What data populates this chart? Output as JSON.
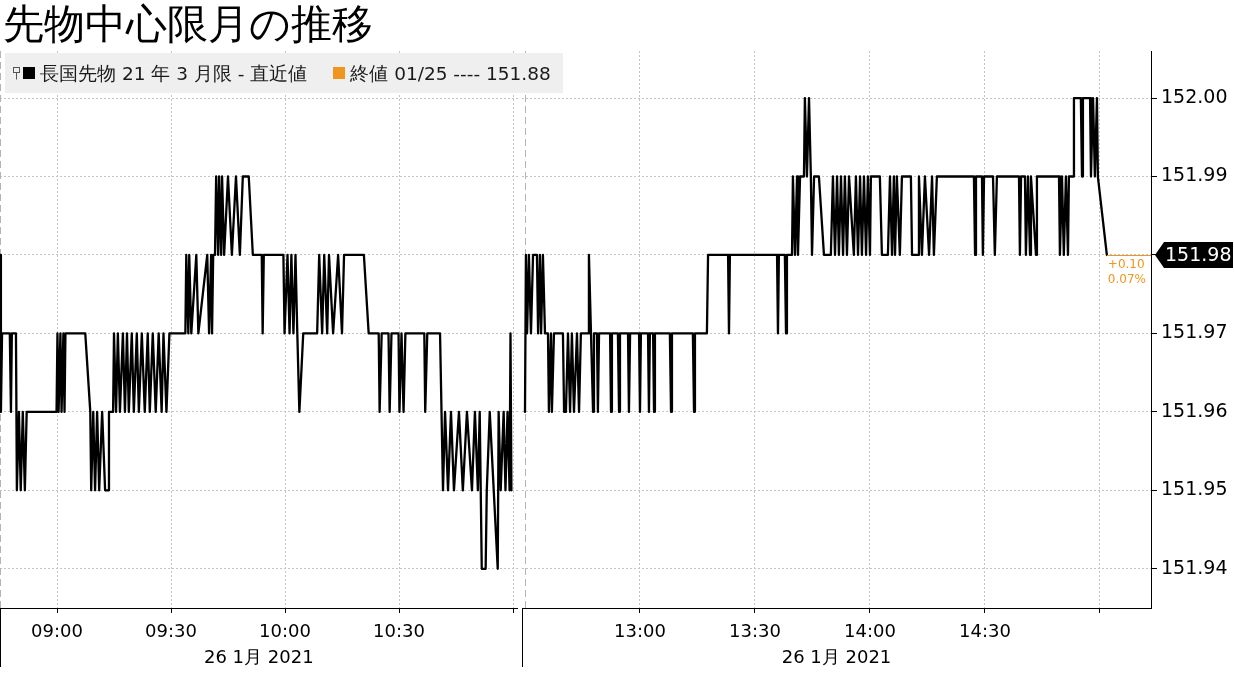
{
  "chart_data": [
    {
      "type": "line",
      "title": "先物中心限月の推移",
      "xlabel": "26 1月 2021",
      "x": [
        8.75,
        8.754,
        8.759,
        8.793,
        8.798,
        8.802,
        8.82,
        8.824,
        8.833,
        8.841,
        8.85,
        8.859,
        8.867,
        8.998,
        9.002,
        9.007,
        9.015,
        9.02,
        9.028,
        9.033,
        9.037,
        9.124,
        9.146,
        9.15,
        9.159,
        9.167,
        9.176,
        9.185,
        9.198,
        9.211,
        9.224,
        9.228,
        9.246,
        9.25,
        9.259,
        9.267,
        9.276,
        9.289,
        9.298,
        9.307,
        9.315,
        9.328,
        9.337,
        9.35,
        9.359,
        9.372,
        9.385,
        9.398,
        9.407,
        9.42,
        9.433,
        9.446,
        9.459,
        9.467,
        9.48,
        9.493,
        9.563,
        9.567,
        9.576,
        9.58,
        9.589,
        9.611,
        9.62,
        9.659,
        9.667,
        9.676,
        9.68,
        9.685,
        9.693,
        9.698,
        9.707,
        9.711,
        9.72,
        9.724,
        9.733,
        9.75,
        9.767,
        9.785,
        9.802,
        9.815,
        9.841,
        9.859,
        9.898,
        9.902,
        9.907,
        9.993,
        9.998,
        10.011,
        10.02,
        10.028,
        10.037,
        10.046,
        10.054,
        10.063,
        10.08,
        10.141,
        10.15,
        10.163,
        10.172,
        10.185,
        10.193,
        10.211,
        10.233,
        10.25,
        10.259,
        10.346,
        10.367,
        10.411,
        10.415,
        10.424,
        10.454,
        10.459,
        10.467,
        10.498,
        10.502,
        10.511,
        10.52,
        10.528,
        10.611,
        10.615,
        10.624,
        10.68,
        10.693,
        10.702,
        10.715,
        10.728,
        10.741,
        10.763,
        10.78,
        10.798,
        10.82,
        10.833,
        10.846,
        10.854,
        10.863,
        10.88,
        10.885,
        10.898,
        10.933,
        10.937,
        10.946,
        10.959,
        10.967,
        10.976,
        10.985,
        10.989,
        10.993
      ],
      "series": [
        {
          "name": "長国先物 21 年 3 月限 - 直近値",
          "color": "#000000",
          "values": [
            151.98,
            151.96,
            151.97,
            151.97,
            151.96,
            151.97,
            151.97,
            151.95,
            151.96,
            151.95,
            151.96,
            151.95,
            151.96,
            151.96,
            151.97,
            151.96,
            151.97,
            151.96,
            151.97,
            151.96,
            151.97,
            151.97,
            151.96,
            151.95,
            151.96,
            151.95,
            151.96,
            151.95,
            151.96,
            151.95,
            151.95,
            151.96,
            151.96,
            151.97,
            151.96,
            151.97,
            151.96,
            151.97,
            151.96,
            151.97,
            151.96,
            151.97,
            151.96,
            151.97,
            151.96,
            151.97,
            151.96,
            151.97,
            151.96,
            151.97,
            151.96,
            151.97,
            151.96,
            151.97,
            151.96,
            151.97,
            151.97,
            151.98,
            151.97,
            151.98,
            151.97,
            151.98,
            151.97,
            151.98,
            151.97,
            151.98,
            151.97,
            151.98,
            151.98,
            151.99,
            151.98,
            151.99,
            151.98,
            151.99,
            151.98,
            151.99,
            151.98,
            151.99,
            151.98,
            151.99,
            151.99,
            151.98,
            151.98,
            151.97,
            151.98,
            151.98,
            151.97,
            151.98,
            151.97,
            151.98,
            151.97,
            151.98,
            151.97,
            151.96,
            151.97,
            151.97,
            151.98,
            151.97,
            151.98,
            151.97,
            151.98,
            151.97,
            151.98,
            151.97,
            151.98,
            151.98,
            151.97,
            151.97,
            151.96,
            151.97,
            151.97,
            151.96,
            151.97,
            151.97,
            151.96,
            151.97,
            151.96,
            151.97,
            151.97,
            151.96,
            151.97,
            151.97,
            151.95,
            151.96,
            151.95,
            151.96,
            151.95,
            151.96,
            151.95,
            151.96,
            151.95,
            151.96,
            151.95,
            151.96,
            151.94,
            151.94,
            151.95,
            151.96,
            151.94,
            151.96,
            151.95,
            151.96,
            151.95,
            151.96,
            151.95,
            151.97,
            151.95
          ]
        }
      ],
      "xlim": [
        8.75,
        11.02
      ],
      "xticks": [
        {
          "value": 9,
          "label": "09:00"
        },
        {
          "value": 9.5,
          "label": "09:30"
        },
        {
          "value": 10,
          "label": "10:00"
        },
        {
          "value": 10.5,
          "label": "10:30"
        },
        {
          "value": 11,
          "label": null
        }
      ],
      "ylim": [
        151.935,
        152.006
      ],
      "yticks": [
        151.94,
        151.95,
        151.96,
        151.97,
        151.98,
        151.99,
        152
      ],
      "grid": true,
      "legend": "top left",
      "tick_labels": "x",
      "ref_lines": [
        {
          "axis": "x",
          "value": 8.75,
          "color": "#b4b4b4",
          "line_style": "dashed"
        }
      ],
      "annotations": [
        "終値 01/25 ---- 151.88"
      ]
    },
    {
      "type": "line",
      "xlabel": "26 1月 2021",
      "x": [
        12.5,
        12.504,
        12.509,
        12.517,
        12.526,
        12.535,
        12.552,
        12.557,
        12.565,
        12.57,
        12.578,
        12.587,
        12.6,
        12.604,
        12.613,
        12.617,
        12.626,
        12.665,
        12.67,
        12.678,
        12.687,
        12.696,
        12.704,
        12.713,
        12.726,
        12.735,
        12.743,
        12.774,
        12.778,
        12.787,
        12.796,
        12.8,
        12.813,
        12.817,
        12.822,
        12.87,
        12.874,
        12.878,
        12.904,
        12.909,
        12.913,
        12.948,
        12.952,
        12.957,
        12.996,
        13.0,
        13.004,
        13.035,
        13.039,
        13.043,
        13.057,
        13.061,
        13.065,
        13.13,
        13.135,
        13.139,
        13.23,
        13.235,
        13.239,
        13.291,
        13.296,
        13.383,
        13.387,
        13.391,
        13.596,
        13.6,
        13.604,
        13.63,
        13.635,
        13.639,
        13.661,
        13.665,
        13.674,
        13.683,
        13.687,
        13.696,
        13.713,
        13.717,
        13.726,
        13.735,
        13.743,
        13.748,
        13.757,
        13.778,
        13.8,
        13.83,
        13.839,
        13.848,
        13.857,
        13.865,
        13.874,
        13.883,
        13.891,
        13.9,
        13.909,
        13.93,
        13.939,
        13.948,
        13.957,
        13.965,
        13.974,
        13.983,
        13.991,
        14.0,
        14.004,
        14.043,
        14.052,
        14.078,
        14.087,
        14.096,
        14.104,
        14.109,
        14.117,
        14.13,
        14.139,
        14.178,
        14.183,
        14.209,
        14.213,
        14.226,
        14.239,
        14.257,
        14.27,
        14.278,
        14.291,
        14.452,
        14.457,
        14.461,
        14.487,
        14.491,
        14.496,
        14.535,
        14.543,
        14.552,
        14.648,
        14.652,
        14.657,
        14.674,
        14.678,
        14.687,
        14.696,
        14.7,
        14.722,
        14.726,
        14.822,
        14.826,
        14.835,
        14.843,
        14.852,
        14.861,
        14.865,
        14.883,
        14.887,
        14.917,
        14.922,
        14.926,
        14.957,
        14.961,
        14.97,
        14.978,
        14.987,
        14.991,
        15.03
      ],
      "series": [
        {
          "color": "#000000",
          "values": [
            151.96,
            151.98,
            151.97,
            151.98,
            151.97,
            151.98,
            151.98,
            151.97,
            151.98,
            151.97,
            151.98,
            151.97,
            151.97,
            151.96,
            151.97,
            151.96,
            151.97,
            151.97,
            151.96,
            151.96,
            151.97,
            151.96,
            151.97,
            151.96,
            151.97,
            151.96,
            151.97,
            151.97,
            151.98,
            151.97,
            151.96,
            151.97,
            151.97,
            151.96,
            151.97,
            151.97,
            151.96,
            151.97,
            151.97,
            151.96,
            151.97,
            151.97,
            151.96,
            151.97,
            151.97,
            151.96,
            151.97,
            151.97,
            151.96,
            151.97,
            151.97,
            151.96,
            151.97,
            151.97,
            151.96,
            151.97,
            151.97,
            151.96,
            151.97,
            151.97,
            151.98,
            151.98,
            151.97,
            151.98,
            151.98,
            151.97,
            151.98,
            151.98,
            151.97,
            151.98,
            151.98,
            151.99,
            151.98,
            151.99,
            151.98,
            151.99,
            151.99,
            152,
            151.99,
            152,
            151.99,
            151.98,
            151.99,
            151.99,
            151.98,
            151.98,
            151.99,
            151.98,
            151.99,
            151.98,
            151.99,
            151.98,
            151.99,
            151.98,
            151.99,
            151.98,
            151.99,
            151.98,
            151.99,
            151.98,
            151.99,
            151.98,
            151.99,
            151.98,
            151.99,
            151.99,
            151.98,
            151.98,
            151.99,
            151.98,
            151.99,
            151.98,
            151.99,
            151.98,
            151.99,
            151.99,
            151.98,
            151.98,
            151.99,
            151.98,
            151.99,
            151.98,
            151.99,
            151.98,
            151.99,
            151.99,
            151.98,
            151.99,
            151.99,
            151.98,
            151.99,
            151.99,
            151.98,
            151.99,
            151.99,
            151.98,
            151.99,
            151.99,
            151.98,
            151.99,
            151.98,
            151.99,
            151.98,
            151.99,
            151.99,
            151.98,
            151.99,
            151.98,
            151.99,
            151.98,
            151.99,
            151.99,
            152,
            152,
            151.99,
            152,
            152,
            151.99,
            152,
            151.99,
            152,
            151.99,
            151.98
          ],
          "value_labels": [
            null,
            null,
            null,
            null,
            null,
            null,
            null,
            null,
            null,
            null,
            null,
            null,
            null,
            null,
            null,
            null,
            null,
            null,
            null,
            null,
            null,
            null,
            null,
            null,
            null,
            null,
            null,
            null,
            null,
            null,
            null,
            null,
            null,
            null,
            null,
            null,
            null,
            null,
            null,
            null,
            null,
            null,
            null,
            null,
            null,
            null,
            null,
            null,
            null,
            null,
            null,
            null,
            null,
            null,
            null,
            null,
            null,
            null,
            null,
            null,
            null,
            null,
            null,
            null,
            null,
            null,
            null,
            null,
            null,
            null,
            null,
            null,
            null,
            null,
            null,
            null,
            null,
            null,
            null,
            null,
            null,
            null,
            null,
            null,
            null,
            null,
            null,
            null,
            null,
            null,
            null,
            null,
            null,
            null,
            null,
            null,
            null,
            null,
            null,
            null,
            null,
            null,
            null,
            null,
            null,
            null,
            null,
            null,
            null,
            null,
            null,
            null,
            null,
            null,
            null,
            null,
            null,
            null,
            null,
            null,
            null,
            null,
            null,
            null,
            null,
            null,
            null,
            null,
            null,
            null,
            null,
            null,
            null,
            null,
            null,
            null,
            null,
            null,
            null,
            null,
            null,
            null,
            null,
            null,
            null,
            null,
            null,
            null,
            null,
            null,
            null,
            null,
            null,
            null,
            null,
            null,
            null,
            null,
            null,
            null,
            null,
            null,
            "151.98"
          ]
        }
      ],
      "xlim": [
        12.487,
        15.222
      ],
      "xticks": [
        {
          "value": 13,
          "label": "13:00"
        },
        {
          "value": 13.5,
          "label": "13:30"
        },
        {
          "value": 14,
          "label": "14:00"
        },
        {
          "value": 14.5,
          "label": "14:30"
        },
        {
          "value": 15,
          "label": null
        }
      ],
      "ylim": [
        151.935,
        152.006
      ],
      "yticks": [
        151.94,
        151.95,
        151.96,
        151.97,
        {
          "value": 151.98,
          "label": null
        },
        151.99,
        {
          "value": 152,
          "label": "152.00"
        }
      ],
      "grid": true,
      "ref_lines": [
        {
          "axis": "x",
          "value": 12.5,
          "color": "#b4b4b4",
          "line_style": "dashed"
        }
      ],
      "annotations": [
        {
          "text": "+0.10\n0.07%",
          "x": 15.03,
          "y": 151.98
        }
      ]
    }
  ]
}
